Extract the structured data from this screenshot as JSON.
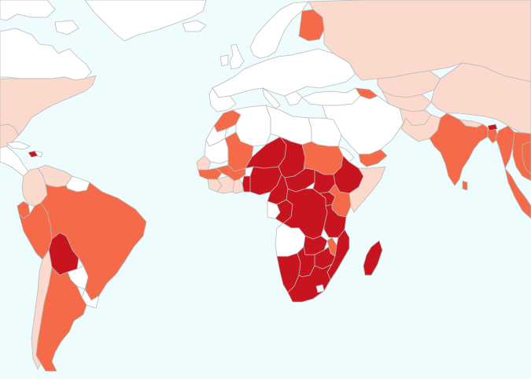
{
  "map": {
    "colors": {
      "ocean": "#eefcfd",
      "none": "#ffffff",
      "light": "#fbd9cd",
      "medium_light": "#f8b89d",
      "medium": "#f56a48",
      "dark": "#c8141e",
      "border": "#b9b9b9"
    },
    "legend_visible": false,
    "regions": [
      {
        "name": "greenland",
        "level": "none"
      },
      {
        "name": "canada",
        "level": "none"
      },
      {
        "name": "united-states",
        "level": "light"
      },
      {
        "name": "mexico",
        "level": "light"
      },
      {
        "name": "central-america",
        "level": "none"
      },
      {
        "name": "haiti",
        "level": "dark"
      },
      {
        "name": "colombia",
        "level": "light"
      },
      {
        "name": "venezuela",
        "level": "light"
      },
      {
        "name": "guianas",
        "level": "none"
      },
      {
        "name": "ecuador",
        "level": "medium"
      },
      {
        "name": "peru",
        "level": "medium"
      },
      {
        "name": "brazil",
        "level": "medium"
      },
      {
        "name": "bolivia",
        "level": "dark"
      },
      {
        "name": "paraguay",
        "level": "none"
      },
      {
        "name": "chile",
        "level": "light"
      },
      {
        "name": "argentina",
        "level": "medium"
      },
      {
        "name": "uruguay",
        "level": "none"
      },
      {
        "name": "norway-sweden",
        "level": "none"
      },
      {
        "name": "finland",
        "level": "medium"
      },
      {
        "name": "russia",
        "level": "light"
      },
      {
        "name": "uk-ireland",
        "level": "none"
      },
      {
        "name": "iceland",
        "level": "none"
      },
      {
        "name": "europe-mainland",
        "level": "none"
      },
      {
        "name": "turkey",
        "level": "none"
      },
      {
        "name": "georgia-armenia",
        "level": "medium"
      },
      {
        "name": "kazakhstan",
        "level": "light"
      },
      {
        "name": "central-asia",
        "level": "light"
      },
      {
        "name": "afghanistan",
        "level": "light"
      },
      {
        "name": "middle-east",
        "level": "none"
      },
      {
        "name": "yemen",
        "level": "medium"
      },
      {
        "name": "morocco",
        "level": "medium"
      },
      {
        "name": "western-sahara",
        "level": "none"
      },
      {
        "name": "algeria",
        "level": "none"
      },
      {
        "name": "libya",
        "level": "none"
      },
      {
        "name": "egypt",
        "level": "none"
      },
      {
        "name": "mauritania",
        "level": "none"
      },
      {
        "name": "mali",
        "level": "medium"
      },
      {
        "name": "niger",
        "level": "dark"
      },
      {
        "name": "chad",
        "level": "dark"
      },
      {
        "name": "sudan",
        "level": "medium"
      },
      {
        "name": "south-sudan",
        "level": "dark"
      },
      {
        "name": "eritrea",
        "level": "none"
      },
      {
        "name": "ethiopia",
        "level": "dark"
      },
      {
        "name": "somalia",
        "level": "light"
      },
      {
        "name": "senegal",
        "level": "light"
      },
      {
        "name": "guinea",
        "level": "medium"
      },
      {
        "name": "sierra-leone-liberia",
        "level": "light"
      },
      {
        "name": "cote-divoire",
        "level": "light"
      },
      {
        "name": "burkina-faso",
        "level": "medium"
      },
      {
        "name": "ghana",
        "level": "light"
      },
      {
        "name": "nigeria",
        "level": "dark"
      },
      {
        "name": "cameroon",
        "level": "dark"
      },
      {
        "name": "central-african-republic",
        "level": "dark"
      },
      {
        "name": "gabon",
        "level": "none"
      },
      {
        "name": "congo",
        "level": "dark"
      },
      {
        "name": "dr-congo",
        "level": "dark"
      },
      {
        "name": "uganda",
        "level": "dark"
      },
      {
        "name": "kenya",
        "level": "medium"
      },
      {
        "name": "tanzania",
        "level": "dark"
      },
      {
        "name": "angola",
        "level": "none"
      },
      {
        "name": "zambia",
        "level": "dark"
      },
      {
        "name": "malawi",
        "level": "medium"
      },
      {
        "name": "mozambique",
        "level": "dark"
      },
      {
        "name": "zimbabwe",
        "level": "dark"
      },
      {
        "name": "namibia",
        "level": "dark"
      },
      {
        "name": "botswana",
        "level": "dark"
      },
      {
        "name": "south-africa",
        "level": "dark"
      },
      {
        "name": "lesotho",
        "level": "none"
      },
      {
        "name": "madagascar",
        "level": "dark"
      },
      {
        "name": "india",
        "level": "medium"
      },
      {
        "name": "pakistan",
        "level": "light"
      },
      {
        "name": "china",
        "level": "light"
      },
      {
        "name": "nepal",
        "level": "light"
      },
      {
        "name": "bangladesh",
        "level": "medium"
      },
      {
        "name": "myanmar",
        "level": "medium"
      },
      {
        "name": "southeast-asia",
        "level": "medium"
      },
      {
        "name": "sri-lanka",
        "level": "medium"
      }
    ]
  }
}
